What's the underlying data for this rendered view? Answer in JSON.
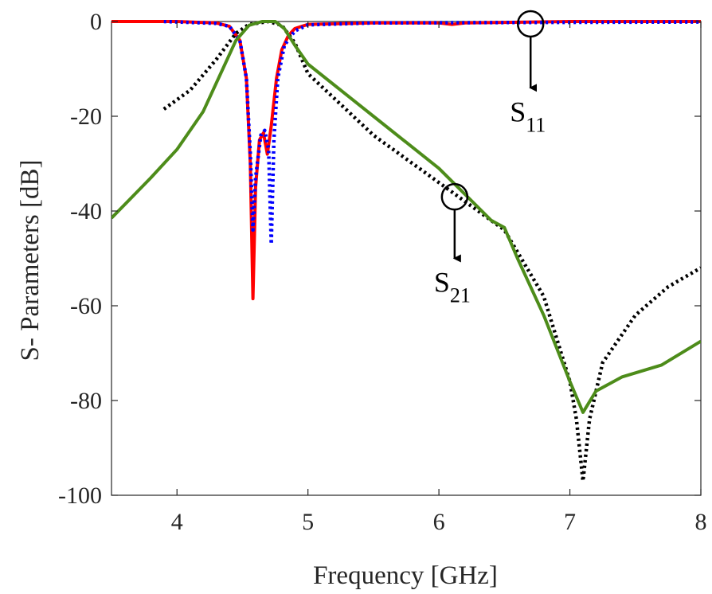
{
  "chart_data": {
    "type": "line",
    "xlabel": "Frequency [GHz]",
    "ylabel": "S- Parameters [dB]",
    "xlim": [
      3.5,
      8
    ],
    "ylim": [
      -100,
      0
    ],
    "x_ticks": [
      "4",
      "5",
      "6",
      "7",
      "8"
    ],
    "y_ticks": [
      "0",
      "-20",
      "-40",
      "-60",
      "-80",
      "-100"
    ],
    "grid": false,
    "legend": "none",
    "series": [
      {
        "color": "#ff0000",
        "style": "solid",
        "points": [
          [
            3.5,
            0
          ],
          [
            4.0,
            0
          ],
          [
            4.3,
            -0.3
          ],
          [
            4.4,
            -1
          ],
          [
            4.48,
            -4
          ],
          [
            4.53,
            -12
          ],
          [
            4.56,
            -30
          ],
          [
            4.58,
            -58.5
          ],
          [
            4.6,
            -35
          ],
          [
            4.63,
            -25
          ],
          [
            4.66,
            -23.5
          ],
          [
            4.69,
            -28
          ],
          [
            4.72,
            -22
          ],
          [
            4.76,
            -12
          ],
          [
            4.8,
            -6
          ],
          [
            4.85,
            -3
          ],
          [
            4.9,
            -1.5
          ],
          [
            5.0,
            -0.6
          ],
          [
            5.5,
            -0.3
          ],
          [
            6.0,
            -0.3
          ],
          [
            6.1,
            -0.6
          ],
          [
            6.2,
            -0.3
          ],
          [
            7.0,
            0
          ],
          [
            8.0,
            0
          ]
        ]
      },
      {
        "color": "#0000ff",
        "style": "dotted",
        "points": [
          [
            3.9,
            0
          ],
          [
            4.3,
            -0.4
          ],
          [
            4.4,
            -1
          ],
          [
            4.48,
            -4
          ],
          [
            4.53,
            -12
          ],
          [
            4.56,
            -28
          ],
          [
            4.58,
            -44
          ],
          [
            4.6,
            -33
          ],
          [
            4.64,
            -24
          ],
          [
            4.67,
            -23
          ],
          [
            4.7,
            -27
          ],
          [
            4.72,
            -47
          ],
          [
            4.74,
            -25
          ],
          [
            4.77,
            -12
          ],
          [
            4.82,
            -5
          ],
          [
            4.9,
            -2
          ],
          [
            5.0,
            -0.7
          ],
          [
            5.5,
            -0.3
          ],
          [
            8.0,
            -0.1
          ]
        ]
      },
      {
        "color": "#000000",
        "style": "dotted",
        "points": [
          [
            3.9,
            -18.5
          ],
          [
            4.1,
            -14.5
          ],
          [
            4.3,
            -8
          ],
          [
            4.45,
            -2.5
          ],
          [
            4.55,
            -0.6
          ],
          [
            4.7,
            0
          ],
          [
            4.8,
            -0.8
          ],
          [
            4.9,
            -4.5
          ],
          [
            5.0,
            -11
          ],
          [
            5.5,
            -24
          ],
          [
            6.0,
            -34
          ],
          [
            6.5,
            -44
          ],
          [
            6.8,
            -58
          ],
          [
            7.0,
            -76
          ],
          [
            7.05,
            -84
          ],
          [
            7.1,
            -97
          ],
          [
            7.15,
            -84
          ],
          [
            7.25,
            -72
          ],
          [
            7.5,
            -62
          ],
          [
            7.75,
            -56
          ],
          [
            8.0,
            -52
          ]
        ]
      },
      {
        "color": "#4d8c1a",
        "style": "solid",
        "points": [
          [
            3.5,
            -41.5
          ],
          [
            3.8,
            -33
          ],
          [
            4.0,
            -27
          ],
          [
            4.2,
            -19
          ],
          [
            4.35,
            -10
          ],
          [
            4.45,
            -4
          ],
          [
            4.55,
            -0.8
          ],
          [
            4.65,
            0
          ],
          [
            4.75,
            0
          ],
          [
            4.82,
            -1.5
          ],
          [
            4.9,
            -5
          ],
          [
            5.0,
            -9
          ],
          [
            5.5,
            -20
          ],
          [
            6.0,
            -31
          ],
          [
            6.4,
            -42
          ],
          [
            6.5,
            -43.5
          ],
          [
            6.6,
            -50
          ],
          [
            6.8,
            -62
          ],
          [
            7.0,
            -76
          ],
          [
            7.1,
            -82.5
          ],
          [
            7.2,
            -78
          ],
          [
            7.4,
            -75
          ],
          [
            7.7,
            -72.5
          ],
          [
            8.0,
            -67.5
          ]
        ]
      }
    ],
    "annotations": [
      {
        "label": "S",
        "subscript": "11",
        "marker_x": 6.7,
        "marker_y": -0.5,
        "arrow_to_y": -14
      },
      {
        "label": "S",
        "subscript": "21",
        "marker_x": 6.12,
        "marker_y": -37,
        "arrow_to_y": -50
      }
    ]
  }
}
